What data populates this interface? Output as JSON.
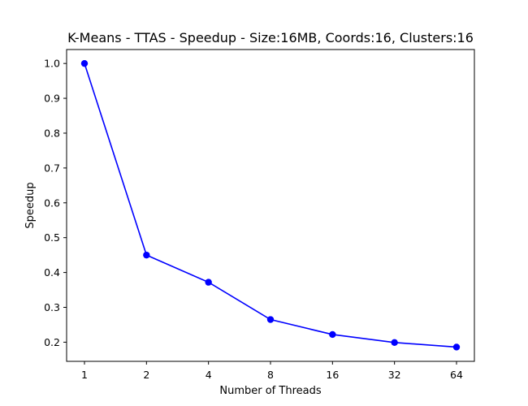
{
  "chart_data": {
    "type": "line",
    "title": "K-Means - TTAS - Speedup - Size:16MB, Coords:16, Clusters:16",
    "xlabel": "Number of Threads",
    "ylabel": "Speedup",
    "categories": [
      "1",
      "2",
      "4",
      "8",
      "16",
      "32",
      "64"
    ],
    "y_ticks": [
      "0.2",
      "0.3",
      "0.4",
      "0.5",
      "0.6",
      "0.7",
      "0.8",
      "0.9",
      "1.0"
    ],
    "ylim": [
      0.145,
      1.04
    ],
    "grid": false,
    "series": [
      {
        "values": [
          1.0,
          0.45,
          0.372,
          0.265,
          0.222,
          0.199,
          0.186
        ],
        "color": "#0000ff",
        "marker": "circle"
      }
    ]
  }
}
